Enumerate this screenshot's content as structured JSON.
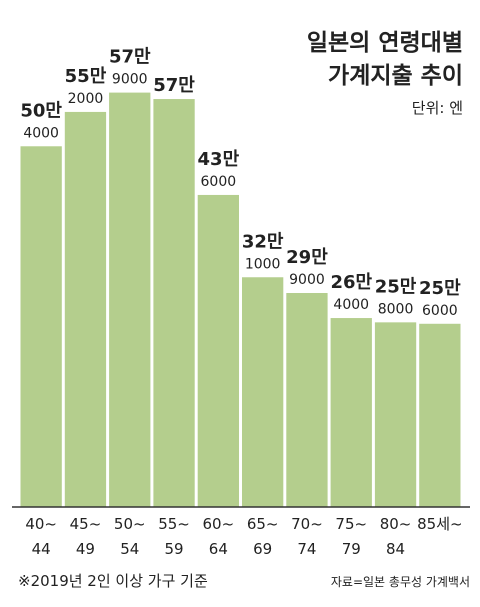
{
  "chart_data": {
    "type": "bar",
    "title": [
      "일본의 연령대별",
      "가계지출 추이"
    ],
    "unit": "단위: 엔",
    "categories": [
      "40~\n44",
      "45~\n49",
      "50~\n54",
      "55~\n59",
      "60~\n64",
      "65~\n69",
      "70~\n74",
      "75~\n79",
      "80~\n84",
      "85세~"
    ],
    "values": [
      504000,
      552000,
      579000,
      570000,
      436000,
      321000,
      299000,
      264000,
      258000,
      256000
    ],
    "value_labels": [
      "50만\n4000",
      "55만\n2000",
      "57만\n9000",
      "57만",
      "43만\n6000",
      "32만\n1000",
      "29만\n9000",
      "26만\n4000",
      "25만\n8000",
      "25만\n6000"
    ],
    "color": "#b4ce8d",
    "ylim": [
      0,
      700000
    ],
    "note": "※2019년 2인 이상 가구 기준",
    "source": "자료=일본 총무성 가계백서"
  }
}
